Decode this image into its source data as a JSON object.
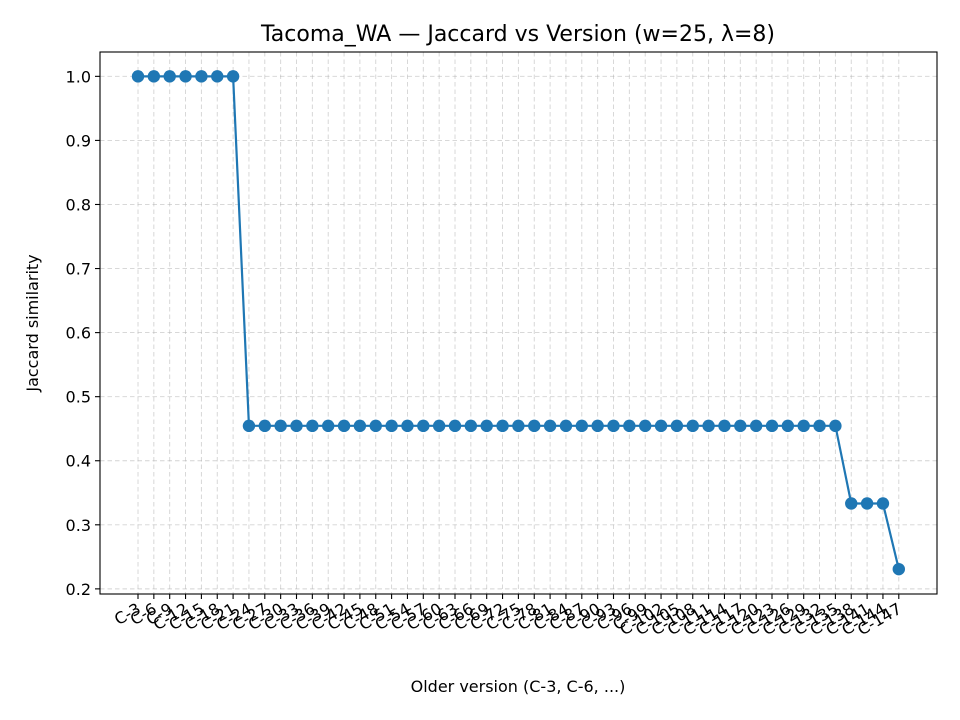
{
  "chart_data": {
    "type": "line",
    "title": "Tacoma_WA — Jaccard vs Version (w=25, λ=8)",
    "xlabel": "Older version (C-3, C-6, ...)",
    "ylabel": "Jaccard similarity",
    "ylim": [
      0.192,
      1.038
    ],
    "yticks": [
      0.2,
      0.3,
      0.4,
      0.5,
      0.6,
      0.7,
      0.8,
      0.9,
      1.0
    ],
    "grid": true,
    "color": "#1f77b4",
    "categories": [
      "C-3",
      "C-6",
      "C-9",
      "C-12",
      "C-15",
      "C-18",
      "C-21",
      "C-24",
      "C-27",
      "C-30",
      "C-33",
      "C-36",
      "C-39",
      "C-42",
      "C-45",
      "C-48",
      "C-51",
      "C-54",
      "C-57",
      "C-60",
      "C-63",
      "C-66",
      "C-69",
      "C-72",
      "C-75",
      "C-78",
      "C-81",
      "C-84",
      "C-87",
      "C-90",
      "C-93",
      "C-96",
      "C-99",
      "C-102",
      "C-105",
      "C-108",
      "C-111",
      "C-114",
      "C-117",
      "C-120",
      "C-123",
      "C-126",
      "C-129",
      "C-132",
      "C-135",
      "C-138",
      "C-141",
      "C-144",
      "C-147"
    ],
    "values": [
      1.0,
      1.0,
      1.0,
      1.0,
      1.0,
      1.0,
      1.0,
      0.4545,
      0.4545,
      0.4545,
      0.4545,
      0.4545,
      0.4545,
      0.4545,
      0.4545,
      0.4545,
      0.4545,
      0.4545,
      0.4545,
      0.4545,
      0.4545,
      0.4545,
      0.4545,
      0.4545,
      0.4545,
      0.4545,
      0.4545,
      0.4545,
      0.4545,
      0.4545,
      0.4545,
      0.4545,
      0.4545,
      0.4545,
      0.4545,
      0.4545,
      0.4545,
      0.4545,
      0.4545,
      0.4545,
      0.4545,
      0.4545,
      0.4545,
      0.4545,
      0.4545,
      0.3333,
      0.3333,
      0.3333,
      0.2308
    ]
  }
}
